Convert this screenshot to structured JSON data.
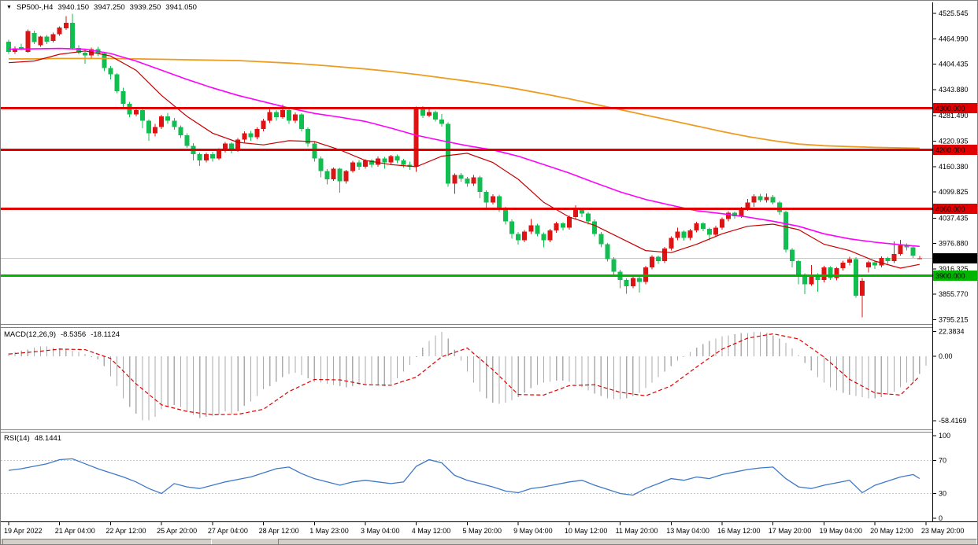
{
  "header": {
    "marker": "▼",
    "symbol_tf": "SP500-,H4",
    "open": "3940.150",
    "high": "3947.250",
    "low": "3939.250",
    "close": "3941.050"
  },
  "indicators": {
    "macd": {
      "label": "MACD(12,26,9)",
      "main_value": "-8.5356",
      "signal_value": "-18.1124",
      "axis_labels": [
        {
          "text": "22.3834",
          "value": 22.3834
        },
        {
          "text": "0.00",
          "value": 0
        },
        {
          "text": "-58.4169",
          "value": -58.4169
        }
      ]
    },
    "rsi": {
      "label": "RSI(14)",
      "value": "48.1441",
      "axis_labels": [
        {
          "text": "100",
          "value": 100
        },
        {
          "text": "70",
          "value": 70
        },
        {
          "text": "30",
          "value": 30
        },
        {
          "text": "0",
          "value": 0
        }
      ],
      "levels": [
        70,
        30
      ]
    }
  },
  "price_axis": {
    "labels": [
      {
        "text": "4525.545",
        "value": 4525.545
      },
      {
        "text": "4464.990",
        "value": 4464.99
      },
      {
        "text": "4404.435",
        "value": 4404.435
      },
      {
        "text": "4343.880",
        "value": 4343.88
      },
      {
        "text": "4281.490",
        "value": 4281.49
      },
      {
        "text": "4220.935",
        "value": 4220.935
      },
      {
        "text": "4160.380",
        "value": 4160.38
      },
      {
        "text": "4099.825",
        "value": 4099.825
      },
      {
        "text": "4037.435",
        "value": 4037.435
      },
      {
        "text": "3976.880",
        "value": 3976.88
      },
      {
        "text": "3916.325",
        "value": 3916.325
      },
      {
        "text": "3855.770",
        "value": 3855.77
      },
      {
        "text": "3795.215",
        "value": 3795.215
      }
    ]
  },
  "hlines": [
    {
      "label": "4300.000",
      "value": 4300,
      "color": "#E00000"
    },
    {
      "label": "4200.000",
      "value": 4200,
      "color": "#E00000"
    },
    {
      "label": "4060.000",
      "value": 4060,
      "color": "#E00000"
    },
    {
      "label": "3900.000",
      "value": 3900,
      "color": "#00B400"
    }
  ],
  "price_marker": {
    "label": "3941.050",
    "value": 3941.05
  },
  "time_axis": {
    "labels": [
      {
        "text": "19 Apr 2022",
        "bar": 0
      },
      {
        "text": "21 Apr 04:00",
        "bar": 8
      },
      {
        "text": "22 Apr 12:00",
        "bar": 16
      },
      {
        "text": "25 Apr 20:00",
        "bar": 24
      },
      {
        "text": "27 Apr 04:00",
        "bar": 32
      },
      {
        "text": "28 Apr 12:00",
        "bar": 40
      },
      {
        "text": "1 May 23:00",
        "bar": 48
      },
      {
        "text": "3 May 04:00",
        "bar": 56
      },
      {
        "text": "4 May 12:00",
        "bar": 64
      },
      {
        "text": "5 May 20:00",
        "bar": 72
      },
      {
        "text": "9 May 04:00",
        "bar": 80
      },
      {
        "text": "10 May 12:00",
        "bar": 88
      },
      {
        "text": "11 May 20:00",
        "bar": 96
      },
      {
        "text": "13 May 04:00",
        "bar": 104
      },
      {
        "text": "16 May 12:00",
        "bar": 112
      },
      {
        "text": "17 May 20:00",
        "bar": 120
      },
      {
        "text": "19 May 04:00",
        "bar": 128
      },
      {
        "text": "20 May 12:00",
        "bar": 136
      },
      {
        "text": "23 May 20:00",
        "bar": 144
      }
    ]
  },
  "colors": {
    "up": "#DC1414",
    "down": "#12BE50",
    "hline_red": "#E00000",
    "hline_green": "#00B400",
    "ma_fast": "#C80000",
    "ma_mid": "#FF00FF",
    "ma_slow": "#ED9C1E",
    "macd_hist": "#ABABAB",
    "macd_signal": "#E00000",
    "rsi_line": "#3E78C8",
    "rsi_level": "#C8C8C8",
    "price_line": "#C8C8C8",
    "marker_bg": "#000000",
    "axis_text": "#000000",
    "frame": "#808080",
    "statusbar_bg": "#D4D0C8"
  },
  "chart_data": {
    "type": "candlestick",
    "title": "SP500-,H4 3940.150 3947.250 3939.250 3941.050",
    "color_convention": "red=bullish, green=bearish",
    "price_axis_range": [
      3795.215,
      4525.545
    ],
    "candles": [
      [
        4458,
        4463,
        4429,
        4434
      ],
      [
        4434,
        4447,
        4429,
        4442
      ],
      [
        4445,
        4453,
        4438,
        4441
      ],
      [
        4434,
        4487,
        4432,
        4483
      ],
      [
        4479,
        4484,
        4452,
        4457
      ],
      [
        4450,
        4472,
        4446,
        4470
      ],
      [
        4470,
        4474,
        4452,
        4458
      ],
      [
        4460,
        4480,
        4456,
        4476
      ],
      [
        4476,
        4495,
        4472,
        4492
      ],
      [
        4490,
        4519,
        4486,
        4503
      ],
      [
        4503,
        4525,
        4438,
        4443
      ],
      [
        4443,
        4450,
        4428,
        4432
      ],
      [
        4432,
        4438,
        4406,
        4425
      ],
      [
        4425,
        4444,
        4420,
        4440
      ],
      [
        4440,
        4446,
        4424,
        4430
      ],
      [
        4430,
        4434,
        4388,
        4395
      ],
      [
        4395,
        4400,
        4368,
        4380
      ],
      [
        4380,
        4383,
        4335,
        4340
      ],
      [
        4340,
        4348,
        4302,
        4310
      ],
      [
        4310,
        4315,
        4278,
        4285
      ],
      [
        4285,
        4300,
        4280,
        4295
      ],
      [
        4295,
        4297,
        4252,
        4270
      ],
      [
        4270,
        4272,
        4222,
        4240
      ],
      [
        4240,
        4262,
        4232,
        4255
      ],
      [
        4255,
        4284,
        4250,
        4280
      ],
      [
        4280,
        4288,
        4262,
        4270
      ],
      [
        4270,
        4276,
        4248,
        4255
      ],
      [
        4255,
        4258,
        4228,
        4235
      ],
      [
        4235,
        4240,
        4205,
        4210
      ],
      [
        4210,
        4216,
        4175,
        4190
      ],
      [
        4190,
        4194,
        4162,
        4175
      ],
      [
        4175,
        4194,
        4170,
        4190
      ],
      [
        4190,
        4196,
        4172,
        4180
      ],
      [
        4180,
        4204,
        4176,
        4200
      ],
      [
        4200,
        4219,
        4194,
        4215
      ],
      [
        4215,
        4218,
        4192,
        4200
      ],
      [
        4200,
        4228,
        4196,
        4225
      ],
      [
        4225,
        4244,
        4218,
        4240
      ],
      [
        4240,
        4245,
        4222,
        4230
      ],
      [
        4230,
        4254,
        4226,
        4250
      ],
      [
        4250,
        4274,
        4244,
        4270
      ],
      [
        4270,
        4300,
        4264,
        4290
      ],
      [
        4290,
        4295,
        4270,
        4278
      ],
      [
        4278,
        4308,
        4274,
        4295
      ],
      [
        4295,
        4298,
        4262,
        4270
      ],
      [
        4270,
        4289,
        4264,
        4285
      ],
      [
        4285,
        4287,
        4244,
        4250
      ],
      [
        4250,
        4254,
        4208,
        4215
      ],
      [
        4215,
        4220,
        4172,
        4180
      ],
      [
        4180,
        4184,
        4135,
        4150
      ],
      [
        4150,
        4154,
        4118,
        4130
      ],
      [
        4130,
        4158,
        4126,
        4155
      ],
      [
        4155,
        4157,
        4098,
        4125
      ],
      [
        4125,
        4152,
        4120,
        4150
      ],
      [
        4150,
        4174,
        4146,
        4170
      ],
      [
        4170,
        4176,
        4152,
        4160
      ],
      [
        4160,
        4178,
        4155,
        4175
      ],
      [
        4175,
        4178,
        4158,
        4165
      ],
      [
        4165,
        4184,
        4160,
        4180
      ],
      [
        4180,
        4183,
        4155,
        4170
      ],
      [
        4170,
        4188,
        4164,
        4185
      ],
      [
        4185,
        4189,
        4168,
        4175
      ],
      [
        4175,
        4179,
        4158,
        4165
      ],
      [
        4165,
        4172,
        4152,
        4160
      ],
      [
        4160,
        4303,
        4148,
        4297
      ],
      [
        4297,
        4304,
        4276,
        4282
      ],
      [
        4282,
        4301,
        4278,
        4290
      ],
      [
        4290,
        4294,
        4268,
        4272
      ],
      [
        4272,
        4286,
        4256,
        4262
      ],
      [
        4262,
        4266,
        4112,
        4120
      ],
      [
        4120,
        4144,
        4095,
        4140
      ],
      [
        4140,
        4145,
        4124,
        4132
      ],
      [
        4132,
        4136,
        4112,
        4120
      ],
      [
        4120,
        4140,
        4114,
        4135
      ],
      [
        4135,
        4138,
        4085,
        4100
      ],
      [
        4100,
        4104,
        4058,
        4075
      ],
      [
        4075,
        4094,
        4070,
        4090
      ],
      [
        4090,
        4093,
        4052,
        4060
      ],
      [
        4060,
        4064,
        4022,
        4030
      ],
      [
        4030,
        4034,
        3988,
        4000
      ],
      [
        4000,
        4004,
        3974,
        3985
      ],
      [
        3985,
        4009,
        3980,
        4005
      ],
      [
        4005,
        4035,
        4000,
        4020
      ],
      [
        4020,
        4024,
        3994,
        4000
      ],
      [
        4000,
        4003,
        3968,
        3985
      ],
      [
        3985,
        4012,
        3980,
        4008
      ],
      [
        4008,
        4029,
        4002,
        4025
      ],
      [
        4025,
        4028,
        4008,
        4015
      ],
      [
        4015,
        4044,
        4010,
        4040
      ],
      [
        4040,
        4068,
        4034,
        4058
      ],
      [
        4058,
        4062,
        4040,
        4048
      ],
      [
        4048,
        4052,
        4022,
        4030
      ],
      [
        4030,
        4034,
        3994,
        4000
      ],
      [
        4000,
        4004,
        3968,
        3975
      ],
      [
        3975,
        3978,
        3934,
        3940
      ],
      [
        3940,
        3944,
        3902,
        3910
      ],
      [
        3910,
        3914,
        3870,
        3890
      ],
      [
        3890,
        3894,
        3857,
        3875
      ],
      [
        3875,
        3899,
        3870,
        3895
      ],
      [
        3895,
        3898,
        3860,
        3885
      ],
      [
        3885,
        3924,
        3880,
        3920
      ],
      [
        3920,
        3949,
        3915,
        3945
      ],
      [
        3945,
        3948,
        3928,
        3935
      ],
      [
        3935,
        3969,
        3930,
        3965
      ],
      [
        3965,
        3994,
        3960,
        3990
      ],
      [
        3990,
        4015,
        3985,
        4005
      ],
      [
        4005,
        4008,
        3984,
        3990
      ],
      [
        3990,
        4012,
        3985,
        4008
      ],
      [
        4008,
        4029,
        4003,
        4025
      ],
      [
        4025,
        4028,
        4006,
        4012
      ],
      [
        4012,
        4015,
        3985,
        3998
      ],
      [
        3998,
        4019,
        3992,
        4015
      ],
      [
        4015,
        4039,
        4010,
        4035
      ],
      [
        4035,
        4054,
        4030,
        4050
      ],
      [
        4050,
        4053,
        4036,
        4042
      ],
      [
        4042,
        4064,
        4038,
        4060
      ],
      [
        4060,
        4083,
        4055,
        4075
      ],
      [
        4075,
        4094,
        4064,
        4090
      ],
      [
        4090,
        4095,
        4076,
        4080
      ],
      [
        4080,
        4096,
        4075,
        4088
      ],
      [
        4088,
        4092,
        4070,
        4075
      ],
      [
        4075,
        4078,
        4046,
        4052
      ],
      [
        4052,
        4055,
        3956,
        3962
      ],
      [
        3962,
        3966,
        3920,
        3935
      ],
      [
        3935,
        3938,
        3880,
        3898
      ],
      [
        3898,
        3906,
        3856,
        3880
      ],
      [
        3880,
        3926,
        3876,
        3902
      ],
      [
        3902,
        3906,
        3862,
        3890
      ],
      [
        3890,
        3924,
        3884,
        3920
      ],
      [
        3920,
        3923,
        3890,
        3895
      ],
      [
        3895,
        3921,
        3889,
        3918
      ],
      [
        3918,
        3936,
        3912,
        3931
      ],
      [
        3931,
        3945,
        3925,
        3940
      ],
      [
        3940,
        3944,
        3848,
        3852
      ],
      [
        3852,
        3895,
        3801,
        3888
      ],
      [
        3920,
        3936,
        3908,
        3932
      ],
      [
        3932,
        3935,
        3916,
        3925
      ],
      [
        3925,
        3946,
        3920,
        3942
      ],
      [
        3942,
        3945,
        3928,
        3935
      ],
      [
        3935,
        3982,
        3930,
        3952
      ],
      [
        3952,
        3986,
        3948,
        3972
      ],
      [
        3972,
        3977,
        3960,
        3968
      ],
      [
        3968,
        3971,
        3942,
        3948
      ],
      [
        3940.15,
        3947.25,
        3939.25,
        3941.05
      ]
    ],
    "moving_averages": {
      "sample_step_bars": 4,
      "fast_red": [
        4408,
        4412,
        4428,
        4436,
        4424,
        4390,
        4330,
        4280,
        4240,
        4218,
        4212,
        4222,
        4220,
        4200,
        4175,
        4165,
        4160,
        4185,
        4192,
        4170,
        4130,
        4075,
        4040,
        4020,
        3990,
        3960,
        3955,
        3975,
        4000,
        4018,
        4023,
        4010,
        3975,
        3960,
        3935,
        3918,
        3927
      ],
      "mid_magenta": [
        4440,
        4441,
        4442,
        4440,
        4430,
        4412,
        4390,
        4368,
        4348,
        4330,
        4315,
        4300,
        4287,
        4278,
        4268,
        4252,
        4235,
        4222,
        4210,
        4200,
        4185,
        4165,
        4145,
        4122,
        4100,
        4082,
        4068,
        4055,
        4048,
        4040,
        4030,
        4018,
        4000,
        3988,
        3980,
        3974,
        3970
      ],
      "slow_orange": [
        4417,
        4417,
        4418,
        4418,
        4418,
        4417,
        4416,
        4415,
        4414,
        4413,
        4410,
        4407,
        4403,
        4398,
        4393,
        4387,
        4380,
        4372,
        4364,
        4355,
        4345,
        4334,
        4322,
        4309,
        4296,
        4283,
        4270,
        4257,
        4244,
        4232,
        4222,
        4214,
        4210,
        4208,
        4206,
        4205,
        4204
      ]
    },
    "macd": {
      "range": [
        -58.4169,
        22.3834
      ],
      "last_main": -8.5356,
      "last_signal": -18.1124,
      "histogram": [
        3,
        4,
        5,
        6,
        8,
        9,
        9,
        8,
        7,
        6,
        5,
        4,
        2,
        0,
        -3,
        -9,
        -18,
        -27,
        -38,
        -46,
        -52,
        -58,
        -58,
        -55,
        -48,
        -45,
        -44,
        -46,
        -50,
        -53,
        -56,
        -55,
        -54,
        -53,
        -50,
        -52,
        -50,
        -45,
        -41,
        -36,
        -30,
        -27,
        -23,
        -19,
        -16,
        -15,
        -17,
        -20,
        -23,
        -24,
        -25,
        -26,
        -27,
        -28,
        -27,
        -26,
        -25,
        -25,
        -26,
        -27,
        -25,
        -20,
        -14,
        -8,
        0,
        8,
        14,
        19,
        22,
        16,
        6,
        -4,
        -14,
        -24,
        -32,
        -38,
        -42,
        -43,
        -42,
        -40,
        -37,
        -33,
        -29,
        -26,
        -24,
        -23,
        -22,
        -22,
        -23,
        -25,
        -28,
        -31,
        -34,
        -36,
        -38,
        -39,
        -39,
        -38,
        -36,
        -33,
        -29,
        -24,
        -19,
        -14,
        -9,
        -4,
        0,
        4,
        8,
        11,
        14,
        16,
        18,
        19,
        20,
        21,
        21,
        22,
        22,
        21,
        19,
        16,
        12,
        7,
        1,
        -6,
        -13,
        -19,
        -24,
        -28,
        -31,
        -33,
        -35,
        -36,
        -37,
        -38,
        -38,
        -37,
        -35,
        -32,
        -28,
        -24,
        -23,
        -16,
        -8.5
      ],
      "signal_step_bars": 4,
      "signal": [
        2,
        4,
        6.5,
        6,
        -2,
        -25,
        -44,
        -50,
        -53,
        -52.6,
        -48,
        -32,
        -21,
        -21.4,
        -25.7,
        -26.3,
        -18.9,
        -0.4,
        7.4,
        -12.2,
        -34.7,
        -35.1,
        -26.6,
        -25.8,
        -32.6,
        -35.8,
        -26.8,
        -9.7,
        6.4,
        16.4,
        20.3,
        15.7,
        -0.8,
        -20.9,
        -33.3,
        -35.1,
        -18.1
      ]
    },
    "rsi": {
      "last": 48.1441,
      "step_bars": 2,
      "values": [
        58,
        60,
        63,
        66,
        71,
        72,
        66,
        60,
        55,
        50,
        44,
        36,
        30,
        42,
        38,
        36,
        40,
        44,
        47,
        50,
        55,
        60,
        62,
        54,
        48,
        44,
        40,
        44,
        46,
        44,
        42,
        44,
        63,
        71,
        67,
        52,
        46,
        42,
        38,
        33,
        31,
        36,
        38,
        41,
        44,
        46,
        40,
        35,
        30,
        28,
        36,
        42,
        48,
        46,
        50,
        48,
        53,
        56,
        59,
        61,
        62,
        48,
        38,
        36,
        40,
        43,
        46,
        31,
        40,
        45,
        50,
        53,
        48.14
      ]
    }
  }
}
